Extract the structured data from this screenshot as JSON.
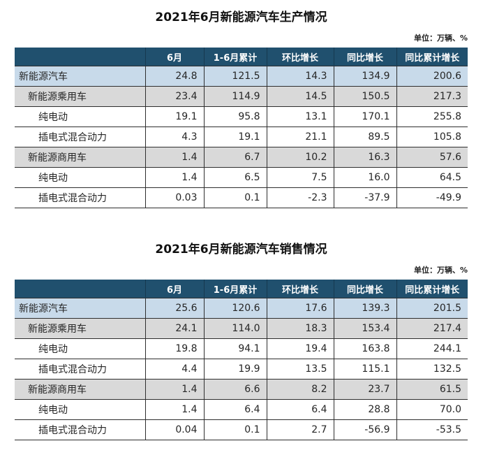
{
  "colors": {
    "header_bg": "#20506E",
    "header_text": "#FFFFFF",
    "row_blue": "#C8DAEA",
    "row_gray": "#D9D9D9",
    "border": "#2E2E2E",
    "title": "#111111"
  },
  "tables": [
    {
      "title": "2021年6月新能源汽车生产情况",
      "unit_label": "单位：万辆、%",
      "columns": [
        "",
        "6月",
        "1-6月累计",
        "环比增长",
        "同比增长",
        "同比累计增长"
      ],
      "rows": [
        {
          "label": "新能源汽车",
          "indent": 0,
          "style": "blue",
          "values": [
            "24.8",
            "121.5",
            "14.3",
            "134.9",
            "200.6"
          ]
        },
        {
          "label": "新能源乘用车",
          "indent": 1,
          "style": "gray",
          "values": [
            "23.4",
            "114.9",
            "14.5",
            "150.5",
            "217.3"
          ]
        },
        {
          "label": "纯电动",
          "indent": 2,
          "style": "white",
          "values": [
            "19.1",
            "95.8",
            "13.1",
            "170.1",
            "255.8"
          ]
        },
        {
          "label": "插电式混合动力",
          "indent": 2,
          "style": "white",
          "values": [
            "4.3",
            "19.1",
            "21.1",
            "89.5",
            "105.8"
          ]
        },
        {
          "label": "新能源商用车",
          "indent": 1,
          "style": "gray",
          "values": [
            "1.4",
            "6.7",
            "10.2",
            "16.3",
            "57.6"
          ]
        },
        {
          "label": "纯电动",
          "indent": 2,
          "style": "white",
          "values": [
            "1.4",
            "6.5",
            "7.5",
            "16.0",
            "64.5"
          ]
        },
        {
          "label": "插电式混合动力",
          "indent": 2,
          "style": "white",
          "values": [
            "0.03",
            "0.1",
            "-2.3",
            "-37.9",
            "-49.9"
          ]
        }
      ]
    },
    {
      "title": "2021年6月新能源汽车销售情况",
      "unit_label": "单位：万辆、%",
      "columns": [
        "",
        "6月",
        "1-6月累计",
        "环比增长",
        "同比增长",
        "同比累计增长"
      ],
      "rows": [
        {
          "label": "新能源汽车",
          "indent": 0,
          "style": "blue",
          "values": [
            "25.6",
            "120.6",
            "17.6",
            "139.3",
            "201.5"
          ]
        },
        {
          "label": "新能源乘用车",
          "indent": 1,
          "style": "gray",
          "values": [
            "24.1",
            "114.0",
            "18.3",
            "153.4",
            "217.4"
          ]
        },
        {
          "label": "纯电动",
          "indent": 2,
          "style": "white",
          "values": [
            "19.8",
            "94.1",
            "19.4",
            "163.8",
            "244.1"
          ]
        },
        {
          "label": "插电式混合动力",
          "indent": 2,
          "style": "white",
          "values": [
            "4.4",
            "19.9",
            "13.5",
            "115.1",
            "132.5"
          ]
        },
        {
          "label": "新能源商用车",
          "indent": 1,
          "style": "gray",
          "values": [
            "1.4",
            "6.6",
            "8.2",
            "23.7",
            "61.5"
          ]
        },
        {
          "label": "纯电动",
          "indent": 2,
          "style": "white",
          "values": [
            "1.4",
            "6.4",
            "6.4",
            "28.8",
            "70.0"
          ]
        },
        {
          "label": "插电式混合动力",
          "indent": 2,
          "style": "white",
          "values": [
            "0.04",
            "0.1",
            "2.7",
            "-56.9",
            "-53.5"
          ]
        }
      ]
    }
  ]
}
